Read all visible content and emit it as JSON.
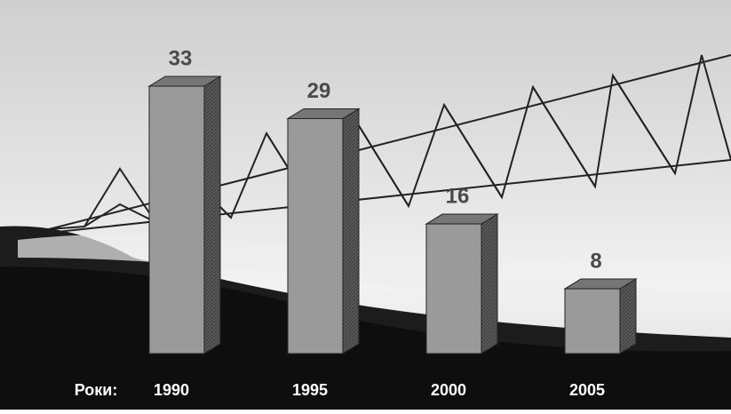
{
  "chart_data": {
    "type": "bar3d",
    "x_label": "Роки:",
    "categories": [
      "1990",
      "1995",
      "2000",
      "2005"
    ],
    "values": [
      33,
      29,
      16,
      8
    ],
    "color": "#9a9a9a"
  }
}
